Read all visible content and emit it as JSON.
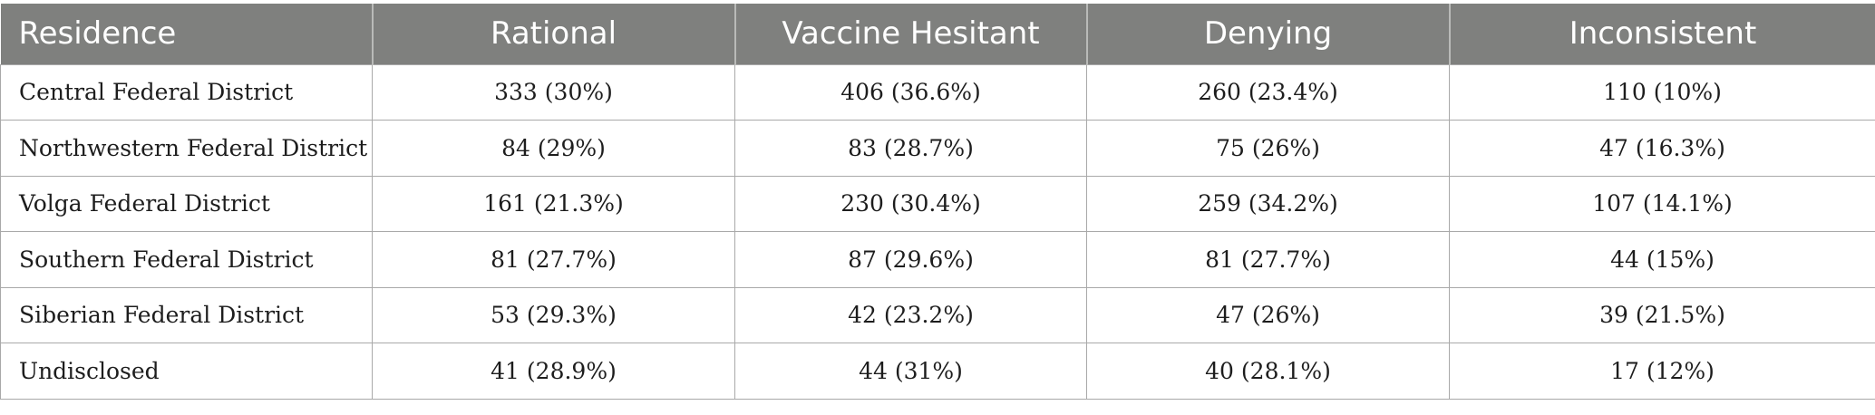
{
  "table": {
    "headers": [
      "Residence",
      "Rational",
      "Vaccine Hesitant",
      "Denying",
      "Inconsistent"
    ],
    "rows": [
      [
        "Central Federal District",
        "333 (30%)",
        "406 (36.6%)",
        "260 (23.4%)",
        "110 (10%)"
      ],
      [
        "Northwestern Federal District",
        "84 (29%)",
        "83 (28.7%)",
        "75 (26%)",
        "47 (16.3%)"
      ],
      [
        "Volga Federal District",
        "161 (21.3%)",
        "230 (30.4%)",
        "259 (34.2%)",
        "107 (14.1%)"
      ],
      [
        "Southern Federal District",
        "81 (27.7%)",
        "87 (29.6%)",
        "81 (27.7%)",
        "44 (15%)"
      ],
      [
        "Siberian Federal District",
        "53 (29.3%)",
        "42 (23.2%)",
        "47 (26%)",
        "39 (21.5%)"
      ],
      [
        "Undisclosed",
        "41 (28.9%)",
        "44 (31%)",
        "40 (28.1%)",
        "17 (12%)"
      ]
    ]
  },
  "colors": {
    "header_background": "#7f807e",
    "header_text": "#ffffff",
    "grid_line": "#a9a9a9"
  }
}
